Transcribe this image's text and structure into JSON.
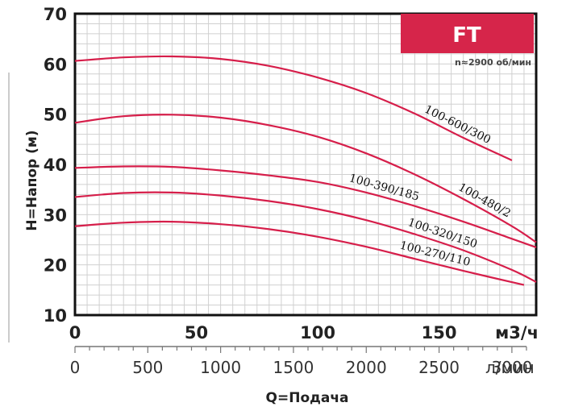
{
  "badge": {
    "label": "FT",
    "color": "#d6254a"
  },
  "speed_note": "n≈2900 об/мин",
  "colors": {
    "curve": "#d61e4a",
    "grid": "#d0d0d0",
    "frame": "#111111"
  },
  "chart_data": {
    "type": "line",
    "ylabel": "H=Напор (м)",
    "xlabel": "Q=Подача",
    "x_unit_primary": "м3/ч",
    "x_unit_secondary": "л/мин",
    "xlim": [
      0,
      190
    ],
    "ylim": [
      10,
      70
    ],
    "y_ticks": [
      "10",
      "20",
      "30",
      "40",
      "50",
      "60",
      "70"
    ],
    "x_ticks_primary": [
      "0",
      "50",
      "100",
      "150"
    ],
    "x_ticks_secondary": [
      "0",
      "500",
      "1000",
      "1500",
      "2000",
      "2500",
      "3000"
    ],
    "grid": true,
    "series": [
      {
        "name": "100-600/300",
        "x": [
          0,
          20,
          40,
          60,
          80,
          100,
          120,
          140,
          160,
          180
        ],
        "y": [
          60.6,
          61.3,
          61.5,
          61.0,
          59.6,
          57.3,
          54.2,
          50.1,
          45.3,
          40.8
        ]
      },
      {
        "name": "100-480/2",
        "x": [
          0,
          20,
          40,
          60,
          80,
          100,
          120,
          140,
          160,
          180,
          190
        ],
        "y": [
          48.3,
          49.6,
          49.9,
          49.3,
          47.8,
          45.5,
          42.2,
          38.0,
          33.1,
          27.7,
          24.5
        ]
      },
      {
        "name": "100-390/185",
        "x": [
          0,
          20,
          40,
          60,
          80,
          100,
          120,
          140,
          160,
          180,
          190
        ],
        "y": [
          39.3,
          39.6,
          39.5,
          38.8,
          37.8,
          36.5,
          34.4,
          31.7,
          28.6,
          25.2,
          23.5
        ]
      },
      {
        "name": "100-320/150",
        "x": [
          0,
          20,
          40,
          60,
          80,
          100,
          120,
          140,
          160,
          180,
          190
        ],
        "y": [
          33.5,
          34.3,
          34.4,
          33.8,
          32.7,
          31.1,
          28.9,
          26.1,
          22.9,
          19.0,
          16.6
        ]
      },
      {
        "name": "100-270/110",
        "x": [
          0,
          20,
          40,
          60,
          80,
          100,
          120,
          140,
          160,
          185
        ],
        "y": [
          27.7,
          28.4,
          28.6,
          28.1,
          27.1,
          25.6,
          23.6,
          21.2,
          18.8,
          16.0
        ]
      }
    ]
  }
}
